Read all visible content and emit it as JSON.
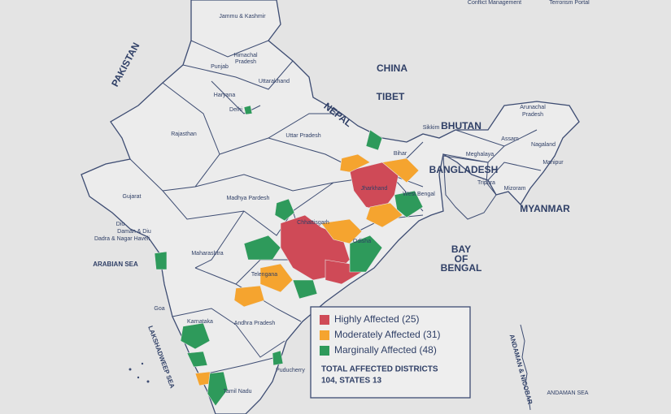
{
  "top_links": [
    "Conflict Management",
    "Terrorism Portal"
  ],
  "map": {
    "labels": [
      "Jammu & Kashmir",
      "Himachal",
      "Pradesh",
      "Punjab",
      "Uttarakhand",
      "Haryana",
      "Delhi",
      "Rajasthan",
      "Uttar Pradesh",
      "PAKISTAN",
      "CHINA",
      "TIBET",
      "NEPAL",
      "BHUTAN",
      "Sikkim",
      "Bihar",
      "Arunachal",
      "Pradesh",
      "Assam",
      "Nagaland",
      "Meghalaya",
      "BANGLADESH",
      "Manipur",
      "Jharkhand",
      "West Bengal",
      "Tripura",
      "Mizoram",
      "MYANMAR",
      "Gujarat",
      "Madhya Pardesh",
      "Chhattisgarh",
      "Diu",
      "Daman & Diu",
      "Dadra & Nagar Haveli",
      "Maharashtra",
      "Odisha",
      "BAY",
      "OF",
      "BENGAL",
      "ARABIAN SEA",
      "Telengana",
      "Goa",
      "Karnataka",
      "Andhra Pradesh",
      "LAKSHADWEEP SEA",
      "Puducherry",
      "Tamil Nadu",
      "ANDAMAN & NICOBAR",
      "ANDAMAN SEA"
    ]
  },
  "legend": {
    "items": [
      {
        "label": "Highly Affected (25)",
        "color": "#cf4a57"
      },
      {
        "label": "Moderately Affected (31)",
        "color": "#f5a42f"
      },
      {
        "label": "Marginally Affected (48)",
        "color": "#2e9a5b"
      }
    ],
    "total_lines": [
      "TOTAL AFFECTED DISTRICTS",
      "104, STATES 13"
    ]
  }
}
